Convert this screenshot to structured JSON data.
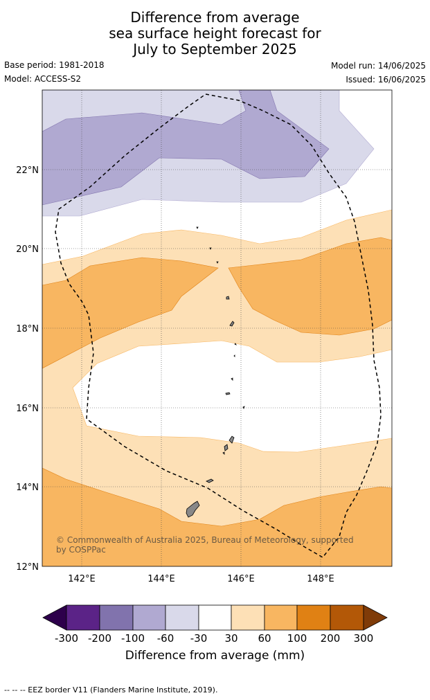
{
  "title_lines": [
    "Difference from average",
    "sea surface height forecast for",
    "July to September 2025"
  ],
  "info": {
    "base_period": "Base period: 1981-2018",
    "model": "Model: ACCESS-S2",
    "model_run": "Model run: 14/06/2025",
    "issued": "Issued: 16/06/2025"
  },
  "map": {
    "lon_range": [
      141,
      149.8
    ],
    "lat_range": [
      12,
      24
    ],
    "lat_ticks": [
      {
        "value": 12,
        "label": "12°N"
      },
      {
        "value": 14,
        "label": "14°N"
      },
      {
        "value": 16,
        "label": "16°N"
      },
      {
        "value": 18,
        "label": "18°N"
      },
      {
        "value": 20,
        "label": "20°N"
      },
      {
        "value": 22,
        "label": "22°N"
      }
    ],
    "lon_ticks": [
      {
        "value": 142,
        "label": "142°E"
      },
      {
        "value": 144,
        "label": "144°E"
      },
      {
        "value": 146,
        "label": "146°E"
      },
      {
        "value": 148,
        "label": "148°E"
      }
    ],
    "copyright": "© Commonwealth of Australia 2025, Bureau of Meteorology, supported by COSPPac"
  },
  "colorbar": {
    "ticks": [
      "-300",
      "-200",
      "-100",
      "-60",
      "-30",
      "30",
      "60",
      "100",
      "200",
      "300"
    ],
    "colors": [
      "#5b2387",
      "#8173ad",
      "#b0a9d1",
      "#d9d9ea",
      "#ffffff",
      "#fde0b6",
      "#f8b661",
      "#e08114",
      "#b35807"
    ],
    "under_color": "#2d004b",
    "over_color": "#7f3b08",
    "label": "Difference from average (mm)"
  },
  "footer": "-- -- -- EEZ border V11 (Flanders Marine Institute, 2019)."
}
